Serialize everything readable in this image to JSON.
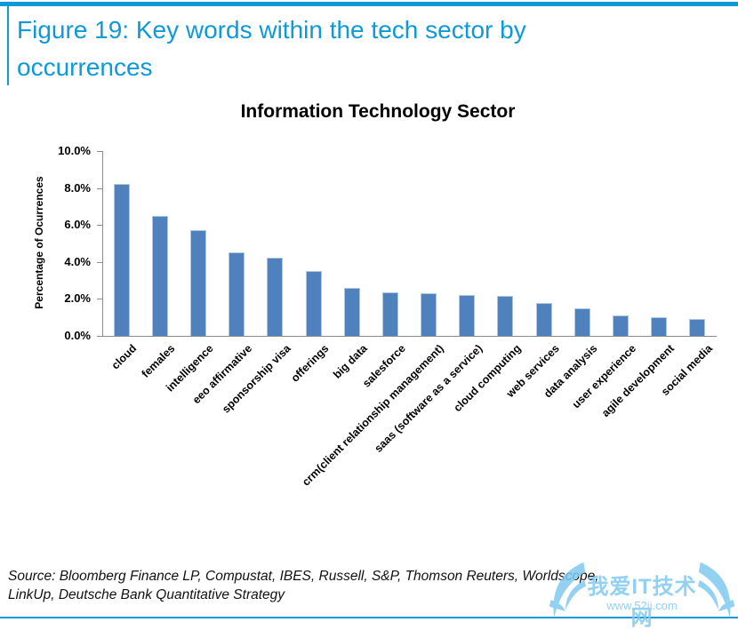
{
  "figure": {
    "title_line1": "Figure 19: Key words within the tech sector by",
    "title_line2": "occurrences"
  },
  "chart_data": {
    "type": "bar",
    "title": "Information Technology Sector",
    "xlabel": "",
    "ylabel": "Percentage of Ocurrences",
    "categories": [
      "cloud",
      "females",
      "intelligence",
      "eeo affirmative",
      "sponsorship visa",
      "offerings",
      "big data",
      "salesforce",
      "crm(client relationship management)",
      "saas (software as a service)",
      "cloud computing",
      "web services",
      "data analysis",
      "user experience",
      "agile development",
      "social media"
    ],
    "values": [
      8.2,
      6.5,
      5.7,
      4.5,
      4.25,
      3.5,
      2.6,
      2.35,
      2.3,
      2.2,
      2.15,
      1.8,
      1.5,
      1.1,
      1.0,
      0.9
    ],
    "ylim": [
      0,
      10
    ],
    "ytick_step": 2,
    "ytick_labels": [
      "0.0%",
      "2.0%",
      "4.0%",
      "6.0%",
      "8.0%",
      "10.0%"
    ],
    "grid": false,
    "legend": "none",
    "bar_color": "#4f81bd",
    "bar_border_color": "#b0c6e1",
    "axis_color": "#8c8c8c"
  },
  "source": {
    "line1": "Source: Bloomberg Finance LP, Compustat, IBES, Russell, S&P, Thomson Reuters, Worldscope,",
    "line2": "LinkUp, Deutsche Bank Quantitative Strategy"
  },
  "watermark": {
    "text": "我爱IT技术网",
    "url": "www.52ij.com",
    "color": "#7fc9f0"
  },
  "colors": {
    "accent_blue": "#0d9ad8"
  }
}
